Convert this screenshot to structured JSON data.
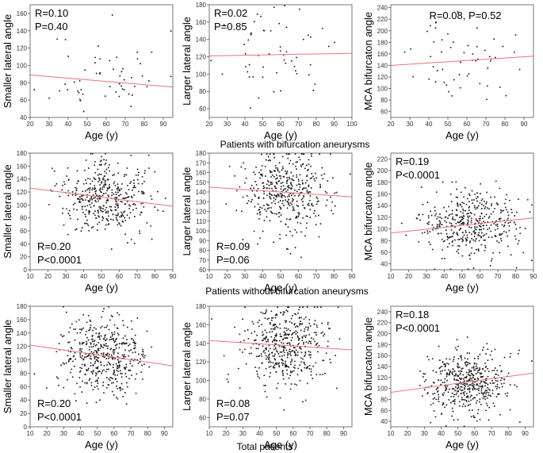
{
  "figure": {
    "section_titles": [
      "Patients with bifurcation aneurysms",
      "Patients without bifurcation aneurysms",
      "Total patients"
    ]
  },
  "colors": {
    "points": "#222222",
    "fit_line": "#e8747c",
    "frame": "#555555"
  },
  "chart_data": [
    {
      "type": "scatter",
      "group": "Patients with bifurcation aneurysms",
      "xlabel": "Age (y)",
      "ylabel": "Smaller lateral angle",
      "xlim": [
        20,
        95
      ],
      "ylim": [
        40,
        170
      ],
      "xticks": [
        20,
        30,
        40,
        50,
        60,
        70,
        80,
        90
      ],
      "yticks": [
        40,
        60,
        80,
        100,
        120,
        140,
        160
      ],
      "stat_lines": [
        "R=0.10",
        "P=0.40"
      ],
      "stat_pos": "top-left",
      "fit": {
        "x": [
          20,
          95
        ],
        "y": [
          89,
          75
        ]
      },
      "n": 55,
      "mean": [
        60,
        90
      ],
      "sd": [
        15,
        25
      ],
      "seed": 11
    },
    {
      "type": "scatter",
      "group": "Patients with bifurcation aneurysms",
      "xlabel": "Age (y)",
      "ylabel": "Larger lateral angle",
      "xlim": [
        20,
        100
      ],
      "ylim": [
        50,
        180
      ],
      "xticks": [
        20,
        30,
        40,
        50,
        60,
        70,
        80,
        90,
        100
      ],
      "yticks": [
        60,
        80,
        100,
        120,
        140,
        160,
        180
      ],
      "stat_lines": [
        "R=0.02",
        "P=0.85"
      ],
      "stat_pos": "top-left",
      "fit": {
        "x": [
          20,
          100
        ],
        "y": [
          121,
          124
        ]
      },
      "n": 55,
      "mean": [
        58,
        122
      ],
      "sd": [
        14,
        24
      ],
      "seed": 23
    },
    {
      "type": "scatter",
      "group": "Patients with bifurcation aneurysms",
      "xlabel": "Age (y)",
      "ylabel": "MCA bifurcaton angle",
      "xlim": [
        20,
        95
      ],
      "ylim": [
        50,
        245
      ],
      "xticks": [
        20,
        30,
        40,
        50,
        60,
        70,
        80,
        90
      ],
      "yticks": [
        60,
        80,
        100,
        120,
        140,
        160,
        180,
        200,
        220,
        240
      ],
      "stat_lines": [
        "R=0.08, P=0.52"
      ],
      "stat_pos": "top-center",
      "fit": {
        "x": [
          20,
          95
        ],
        "y": [
          140,
          156
        ]
      },
      "n": 55,
      "mean": [
        58,
        148
      ],
      "sd": [
        13,
        35
      ],
      "seed": 37
    },
    {
      "type": "scatter",
      "group": "Patients without bifurcation aneurysms",
      "xlabel": "Age (y)",
      "ylabel": "Smaller lateral angle",
      "xlim": [
        10,
        90
      ],
      "ylim": [
        0,
        180
      ],
      "xticks": [
        10,
        20,
        30,
        40,
        50,
        60,
        70,
        80,
        90
      ],
      "yticks": [
        0,
        20,
        40,
        60,
        80,
        100,
        120,
        140,
        160,
        180
      ],
      "stat_lines": [
        "R=0.20",
        "P<0.0001"
      ],
      "stat_pos": "bottom-left",
      "fit": {
        "x": [
          10,
          90
        ],
        "y": [
          126,
          98
        ]
      },
      "n": 430,
      "mean": [
        52,
        112
      ],
      "sd": [
        13,
        28
      ],
      "seed": 41
    },
    {
      "type": "scatter",
      "group": "Patients without bifurcation aneurysms",
      "xlabel": "Age (y)",
      "ylabel": "Larger lateral angle",
      "xlim": [
        10,
        90
      ],
      "ylim": [
        60,
        180
      ],
      "xticks": [
        10,
        20,
        30,
        40,
        50,
        60,
        70,
        80,
        90
      ],
      "yticks": [
        60,
        70,
        80,
        90,
        100,
        110,
        120,
        130,
        140,
        150,
        160,
        170,
        180
      ],
      "stat_lines": [
        "R=0.09",
        "P=0.06"
      ],
      "stat_pos": "bottom-left",
      "fit": {
        "x": [
          10,
          90
        ],
        "y": [
          145,
          135
        ]
      },
      "n": 430,
      "mean": [
        54,
        139
      ],
      "sd": [
        13,
        22
      ],
      "seed": 53
    },
    {
      "type": "scatter",
      "group": "Patients without bifurcation aneurysms",
      "xlabel": "Age (y)",
      "ylabel": "MCA bifurcaton angle",
      "xlim": [
        10,
        90
      ],
      "ylim": [
        30,
        230
      ],
      "xticks": [
        10,
        20,
        30,
        40,
        50,
        60,
        70,
        80,
        90
      ],
      "yticks": [
        40,
        60,
        80,
        100,
        120,
        140,
        160,
        180,
        200,
        220
      ],
      "stat_lines": [
        "R=0.19",
        "P<0.0001"
      ],
      "stat_pos": "top-left",
      "fit": {
        "x": [
          10,
          90
        ],
        "y": [
          93,
          119
        ]
      },
      "n": 430,
      "mean": [
        54,
        106
      ],
      "sd": [
        13,
        28
      ],
      "seed": 67
    },
    {
      "type": "scatter",
      "group": "Total patients",
      "xlabel": "Age (y)",
      "ylabel": "Smaller lateral angle",
      "xlim": [
        10,
        95
      ],
      "ylim": [
        0,
        180
      ],
      "xticks": [
        10,
        20,
        30,
        40,
        50,
        60,
        70,
        80,
        90
      ],
      "yticks": [
        0,
        20,
        40,
        60,
        80,
        100,
        120,
        140,
        160,
        180
      ],
      "stat_lines": [
        "R=0.20",
        "P<0.0001"
      ],
      "stat_pos": "bottom-left",
      "fit": {
        "x": [
          10,
          95
        ],
        "y": [
          122,
          91
        ]
      },
      "n": 480,
      "mean": [
        53,
        108
      ],
      "sd": [
        13,
        28
      ],
      "seed": 79
    },
    {
      "type": "scatter",
      "group": "Total patients",
      "xlabel": "Age (y)",
      "ylabel": "Larger lateral angle",
      "xlim": [
        10,
        95
      ],
      "ylim": [
        50,
        180
      ],
      "xticks": [
        10,
        20,
        30,
        40,
        50,
        60,
        70,
        80,
        90
      ],
      "yticks": [
        60,
        80,
        100,
        120,
        140,
        160,
        180
      ],
      "stat_lines": [
        "R=0.08",
        "P=0.07"
      ],
      "stat_pos": "bottom-left",
      "fit": {
        "x": [
          10,
          95
        ],
        "y": [
          143,
          133
        ]
      },
      "n": 480,
      "mean": [
        55,
        138
      ],
      "sd": [
        13,
        22
      ],
      "seed": 83
    },
    {
      "type": "scatter",
      "group": "Total patients",
      "xlabel": "Age (y)",
      "ylabel": "MCA bifurcaton angle",
      "xlim": [
        10,
        95
      ],
      "ylim": [
        30,
        250
      ],
      "xticks": [
        10,
        20,
        30,
        40,
        50,
        60,
        70,
        80,
        90
      ],
      "yticks": [
        40,
        60,
        80,
        100,
        120,
        140,
        160,
        180,
        200,
        220,
        240
      ],
      "stat_lines": [
        "R=0.18",
        "P<0.0001"
      ],
      "stat_pos": "top-left",
      "fit": {
        "x": [
          10,
          95
        ],
        "y": [
          93,
          128
        ]
      },
      "n": 480,
      "mean": [
        55,
        110
      ],
      "sd": [
        13,
        30
      ],
      "seed": 97
    }
  ]
}
